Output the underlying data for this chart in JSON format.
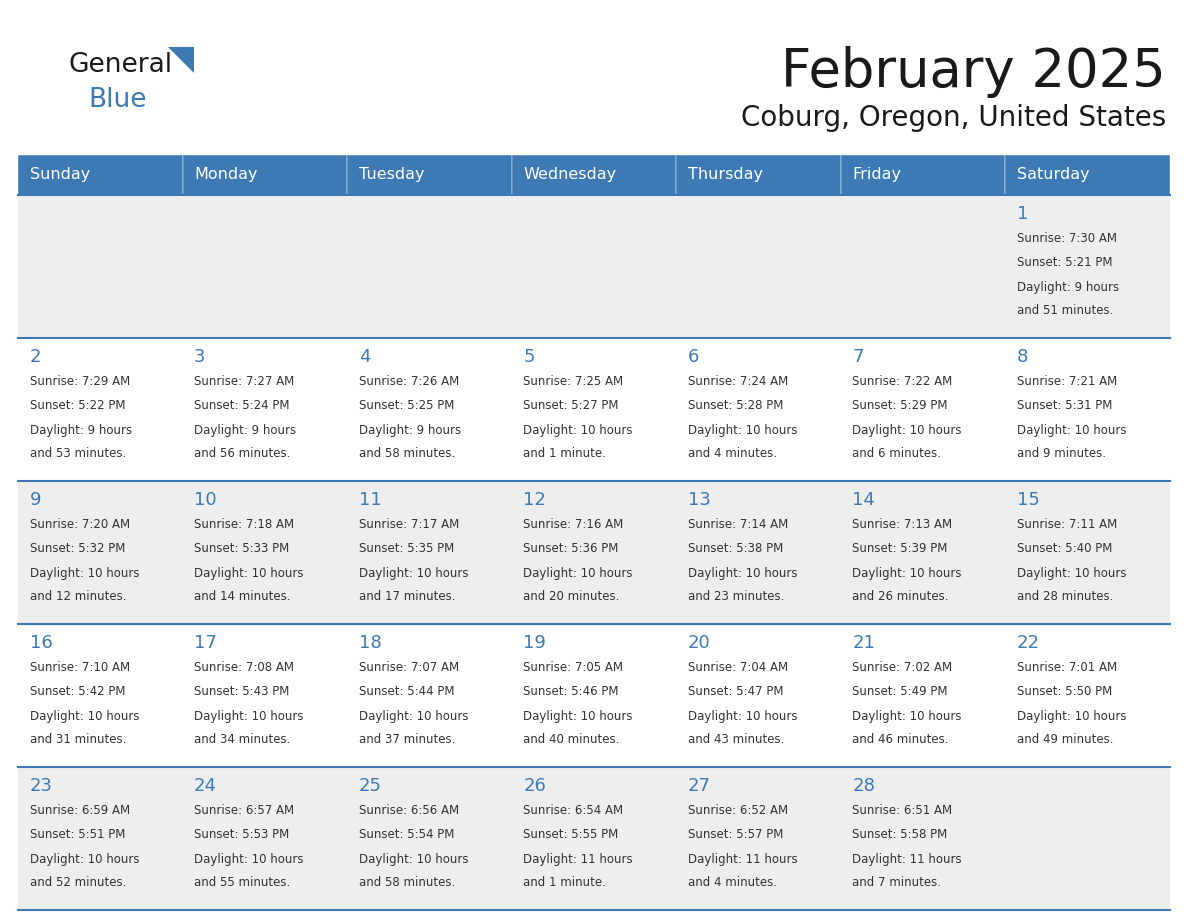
{
  "title": "February 2025",
  "subtitle": "Coburg, Oregon, United States",
  "header_color": "#3d7ab5",
  "header_text_color": "#ffffff",
  "row_bg_colors": [
    "#eeeeee",
    "#ffffff",
    "#eeeeee",
    "#ffffff",
    "#eeeeee"
  ],
  "grid_line_color": "#3d7ab5",
  "day_number_color": "#3d7ab5",
  "text_color": "#333333",
  "weekdays": [
    "Sunday",
    "Monday",
    "Tuesday",
    "Wednesday",
    "Thursday",
    "Friday",
    "Saturday"
  ],
  "days_data": [
    {
      "day": 1,
      "col": 6,
      "row": 0,
      "sunrise": "7:30 AM",
      "sunset": "5:21 PM",
      "daylight": "9 hours and 51 minutes."
    },
    {
      "day": 2,
      "col": 0,
      "row": 1,
      "sunrise": "7:29 AM",
      "sunset": "5:22 PM",
      "daylight": "9 hours and 53 minutes."
    },
    {
      "day": 3,
      "col": 1,
      "row": 1,
      "sunrise": "7:27 AM",
      "sunset": "5:24 PM",
      "daylight": "9 hours and 56 minutes."
    },
    {
      "day": 4,
      "col": 2,
      "row": 1,
      "sunrise": "7:26 AM",
      "sunset": "5:25 PM",
      "daylight": "9 hours and 58 minutes."
    },
    {
      "day": 5,
      "col": 3,
      "row": 1,
      "sunrise": "7:25 AM",
      "sunset": "5:27 PM",
      "daylight": "10 hours and 1 minute."
    },
    {
      "day": 6,
      "col": 4,
      "row": 1,
      "sunrise": "7:24 AM",
      "sunset": "5:28 PM",
      "daylight": "10 hours and 4 minutes."
    },
    {
      "day": 7,
      "col": 5,
      "row": 1,
      "sunrise": "7:22 AM",
      "sunset": "5:29 PM",
      "daylight": "10 hours and 6 minutes."
    },
    {
      "day": 8,
      "col": 6,
      "row": 1,
      "sunrise": "7:21 AM",
      "sunset": "5:31 PM",
      "daylight": "10 hours and 9 minutes."
    },
    {
      "day": 9,
      "col": 0,
      "row": 2,
      "sunrise": "7:20 AM",
      "sunset": "5:32 PM",
      "daylight": "10 hours and 12 minutes."
    },
    {
      "day": 10,
      "col": 1,
      "row": 2,
      "sunrise": "7:18 AM",
      "sunset": "5:33 PM",
      "daylight": "10 hours and 14 minutes."
    },
    {
      "day": 11,
      "col": 2,
      "row": 2,
      "sunrise": "7:17 AM",
      "sunset": "5:35 PM",
      "daylight": "10 hours and 17 minutes."
    },
    {
      "day": 12,
      "col": 3,
      "row": 2,
      "sunrise": "7:16 AM",
      "sunset": "5:36 PM",
      "daylight": "10 hours and 20 minutes."
    },
    {
      "day": 13,
      "col": 4,
      "row": 2,
      "sunrise": "7:14 AM",
      "sunset": "5:38 PM",
      "daylight": "10 hours and 23 minutes."
    },
    {
      "day": 14,
      "col": 5,
      "row": 2,
      "sunrise": "7:13 AM",
      "sunset": "5:39 PM",
      "daylight": "10 hours and 26 minutes."
    },
    {
      "day": 15,
      "col": 6,
      "row": 2,
      "sunrise": "7:11 AM",
      "sunset": "5:40 PM",
      "daylight": "10 hours and 28 minutes."
    },
    {
      "day": 16,
      "col": 0,
      "row": 3,
      "sunrise": "7:10 AM",
      "sunset": "5:42 PM",
      "daylight": "10 hours and 31 minutes."
    },
    {
      "day": 17,
      "col": 1,
      "row": 3,
      "sunrise": "7:08 AM",
      "sunset": "5:43 PM",
      "daylight": "10 hours and 34 minutes."
    },
    {
      "day": 18,
      "col": 2,
      "row": 3,
      "sunrise": "7:07 AM",
      "sunset": "5:44 PM",
      "daylight": "10 hours and 37 minutes."
    },
    {
      "day": 19,
      "col": 3,
      "row": 3,
      "sunrise": "7:05 AM",
      "sunset": "5:46 PM",
      "daylight": "10 hours and 40 minutes."
    },
    {
      "day": 20,
      "col": 4,
      "row": 3,
      "sunrise": "7:04 AM",
      "sunset": "5:47 PM",
      "daylight": "10 hours and 43 minutes."
    },
    {
      "day": 21,
      "col": 5,
      "row": 3,
      "sunrise": "7:02 AM",
      "sunset": "5:49 PM",
      "daylight": "10 hours and 46 minutes."
    },
    {
      "day": 22,
      "col": 6,
      "row": 3,
      "sunrise": "7:01 AM",
      "sunset": "5:50 PM",
      "daylight": "10 hours and 49 minutes."
    },
    {
      "day": 23,
      "col": 0,
      "row": 4,
      "sunrise": "6:59 AM",
      "sunset": "5:51 PM",
      "daylight": "10 hours and 52 minutes."
    },
    {
      "day": 24,
      "col": 1,
      "row": 4,
      "sunrise": "6:57 AM",
      "sunset": "5:53 PM",
      "daylight": "10 hours and 55 minutes."
    },
    {
      "day": 25,
      "col": 2,
      "row": 4,
      "sunrise": "6:56 AM",
      "sunset": "5:54 PM",
      "daylight": "10 hours and 58 minutes."
    },
    {
      "day": 26,
      "col": 3,
      "row": 4,
      "sunrise": "6:54 AM",
      "sunset": "5:55 PM",
      "daylight": "11 hours and 1 minute."
    },
    {
      "day": 27,
      "col": 4,
      "row": 4,
      "sunrise": "6:52 AM",
      "sunset": "5:57 PM",
      "daylight": "11 hours and 4 minutes."
    },
    {
      "day": 28,
      "col": 5,
      "row": 4,
      "sunrise": "6:51 AM",
      "sunset": "5:58 PM",
      "daylight": "11 hours and 7 minutes."
    }
  ],
  "logo_text1": "General",
  "logo_text2": "Blue",
  "logo_color1": "#1a1a1a",
  "logo_color2": "#3d7ab5",
  "title_fontsize": 38,
  "subtitle_fontsize": 20,
  "header_fontsize": 11.5,
  "day_num_fontsize": 13,
  "cell_text_fontsize": 8.5
}
